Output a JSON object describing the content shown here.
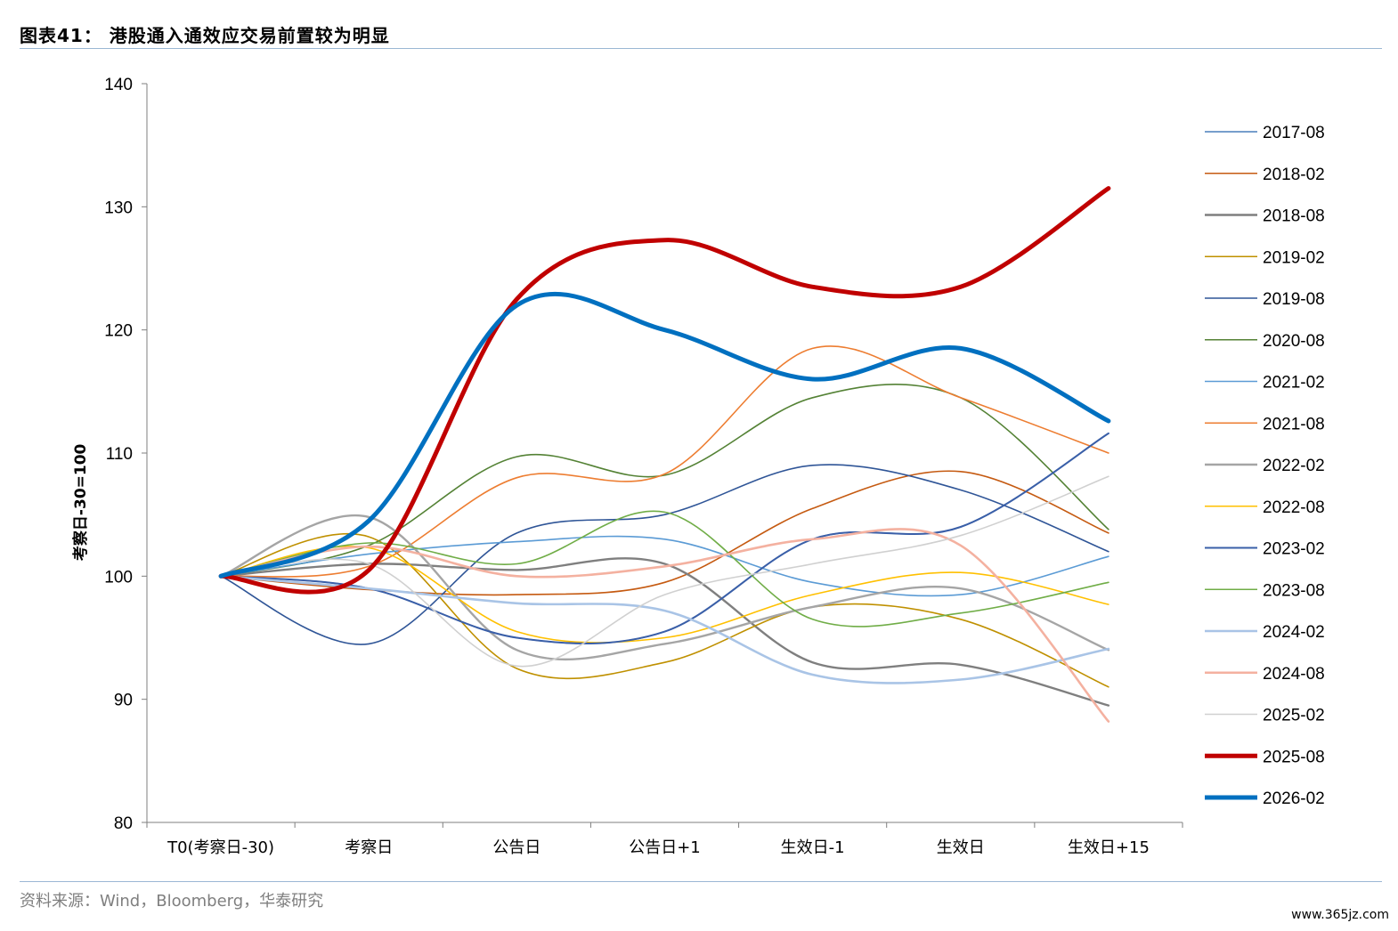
{
  "header": {
    "title": "图表41： 港股通入通效应交易前置较为明显"
  },
  "footer": {
    "source": "资料来源：Wind，Bloomberg，华泰研究",
    "watermark": "www.365jz.com"
  },
  "chart_data": {
    "type": "line",
    "title": "",
    "xlabel": "",
    "ylabel": "考察日-30=100",
    "ylim": [
      80,
      140
    ],
    "yticks": [
      80,
      90,
      100,
      110,
      120,
      130,
      140
    ],
    "categories": [
      "T0(考察日-30)",
      "考察日",
      "公告日",
      "公告日+1",
      "生效日-1",
      "生效日",
      "生效日+15"
    ],
    "legend_position": "right",
    "grid": false,
    "series": [
      {
        "name": "2017-08",
        "color": "#4a7ebb",
        "width": 1.6,
        "values": [
          100,
          99.0,
          95.0,
          95.5,
          103.0,
          104.0,
          111.6
        ]
      },
      {
        "name": "2018-02",
        "color": "#c55a11",
        "width": 1.6,
        "values": [
          100,
          98.9,
          98.5,
          99.5,
          105.5,
          108.5,
          103.5
        ]
      },
      {
        "name": "2018-08",
        "color": "#7f7f7f",
        "width": 2.4,
        "values": [
          100,
          101.0,
          100.5,
          101.0,
          93.0,
          92.8,
          89.5
        ]
      },
      {
        "name": "2019-02",
        "color": "#bf9000",
        "width": 1.6,
        "values": [
          100,
          103.2,
          92.5,
          93.0,
          97.5,
          96.5,
          91.0
        ]
      },
      {
        "name": "2019-08",
        "color": "#2f5597",
        "width": 1.6,
        "values": [
          100,
          94.5,
          103.5,
          105.0,
          109.0,
          107.0,
          102.0
        ]
      },
      {
        "name": "2020-08",
        "color": "#548235",
        "width": 1.6,
        "values": [
          100,
          102.5,
          109.7,
          108.2,
          114.5,
          114.5,
          103.8
        ]
      },
      {
        "name": "2021-02",
        "color": "#5b9bd5",
        "width": 1.6,
        "values": [
          100,
          101.8,
          102.8,
          103.0,
          99.5,
          98.5,
          101.6
        ]
      },
      {
        "name": "2021-08",
        "color": "#ed7d31",
        "width": 1.6,
        "values": [
          100,
          100.8,
          108.0,
          108.3,
          118.5,
          114.5,
          110.0
        ]
      },
      {
        "name": "2022-02",
        "color": "#a5a5a5",
        "width": 2.4,
        "values": [
          100,
          104.8,
          94.0,
          94.5,
          97.5,
          99.0,
          94.0
        ]
      },
      {
        "name": "2022-08",
        "color": "#ffc000",
        "width": 1.6,
        "values": [
          100,
          102.3,
          95.5,
          95.0,
          98.5,
          100.3,
          97.7
        ]
      },
      {
        "name": "2023-02",
        "color": "#3a5fa8",
        "width": 2.0,
        "values": [
          100,
          99.0,
          95.0,
          95.5,
          103.0,
          104.0,
          111.6
        ]
      },
      {
        "name": "2023-08",
        "color": "#70ad47",
        "width": 1.6,
        "values": [
          100,
          102.7,
          101.0,
          105.2,
          96.5,
          97.0,
          99.5
        ]
      },
      {
        "name": "2024-02",
        "color": "#a9c4e6",
        "width": 2.6,
        "values": [
          100,
          99.0,
          97.8,
          97.2,
          92.0,
          91.6,
          94.1
        ]
      },
      {
        "name": "2024-08",
        "color": "#f4b1a0",
        "width": 2.6,
        "values": [
          100,
          102.4,
          100.0,
          100.8,
          103.0,
          102.5,
          88.2
        ]
      },
      {
        "name": "2025-02",
        "color": "#d0d0d0",
        "width": 1.6,
        "values": [
          100,
          101.0,
          92.7,
          98.5,
          101.0,
          103.3,
          108.1
        ]
      },
      {
        "name": "2025-08",
        "color": "#c00000",
        "width": 5.0,
        "values": [
          100,
          100.5,
          122.5,
          127.3,
          123.5,
          123.5,
          131.5
        ]
      },
      {
        "name": "2026-02",
        "color": "#0070c0",
        "width": 5.0,
        "values": [
          100,
          104.5,
          122.0,
          120.0,
          116.0,
          118.5,
          112.6
        ]
      }
    ]
  }
}
